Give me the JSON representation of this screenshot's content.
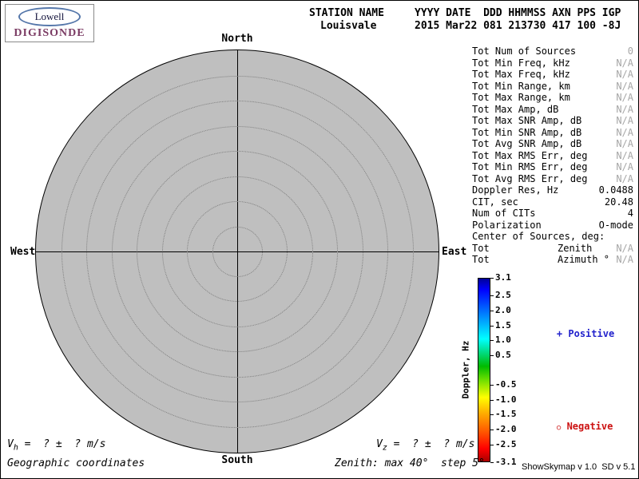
{
  "logo": {
    "top": "Lowell",
    "bottom": "DIGISONDE"
  },
  "header": {
    "station_label": "STATION NAME",
    "station_value": "Louisvale",
    "fields_label": "YYYY DATE  DDD HHMMSS AXN PPS IGP",
    "fields_value": "2015 Mar22 081 213730 417 100 -8J"
  },
  "compass": {
    "north": "North",
    "south": "South",
    "east": "East",
    "west": "West"
  },
  "stats": {
    "rows": [
      {
        "label": "Tot Num of Sources",
        "value": "0"
      },
      {
        "label": "Tot Min Freq, kHz",
        "value": "N/A"
      },
      {
        "label": "Tot Max Freq, kHz",
        "value": "N/A"
      },
      {
        "label": "Tot Min Range, km",
        "value": "N/A"
      },
      {
        "label": "Tot Max Range, km",
        "value": "N/A"
      },
      {
        "label": "Tot Max Amp, dB",
        "value": "N/A"
      },
      {
        "label": "Tot Max SNR Amp, dB",
        "value": "N/A"
      },
      {
        "label": "Tot Min SNR Amp, dB",
        "value": "N/A"
      },
      {
        "label": "Tot Avg SNR Amp, dB",
        "value": "N/A"
      },
      {
        "label": "Tot Max RMS Err, deg",
        "value": "N/A"
      },
      {
        "label": "Tot Min RMS Err, deg",
        "value": "N/A"
      },
      {
        "label": "Tot Avg RMS Err, deg",
        "value": "N/A"
      },
      {
        "label": "Doppler Res, Hz",
        "value": "0.0488"
      },
      {
        "label": "CIT, sec",
        "value": "20.48"
      },
      {
        "label": "Num of CITs",
        "value": "4"
      },
      {
        "label": "Polarization",
        "value": "O-mode"
      },
      {
        "label": "Center of Sources, deg:",
        "value": ""
      },
      {
        "label": "Tot",
        "mid": "Zenith",
        "value": "N/A"
      },
      {
        "label": "Tot",
        "mid": "Azimuth °",
        "value": "N/A"
      }
    ]
  },
  "colorbar": {
    "label": "Doppler, Hz",
    "max": 3.1,
    "min": -3.1,
    "ticks": [
      "3.1",
      "2.5",
      "2.0",
      "1.5",
      "1.0",
      "0.5",
      "-0.5",
      "-1.0",
      "-1.5",
      "-2.0",
      "-2.5",
      "-3.1"
    ],
    "tick_values": [
      3.1,
      2.5,
      2.0,
      1.5,
      1.0,
      0.5,
      -0.5,
      -1.0,
      -1.5,
      -2.0,
      -2.5,
      -3.1
    ]
  },
  "legend": {
    "positive_marker": "+",
    "positive_label": "Positive",
    "negative_marker": "○",
    "negative_label": "Negative"
  },
  "footer": {
    "vh_sym": "V",
    "vh_sub": "h",
    "vz_sym": "V",
    "vz_sub": "z",
    "v_rest": " =  ? ±  ? m/s",
    "coords": "Geographic coordinates",
    "zenith_note": "Zenith: max 40°  step 5°",
    "credit": "ShowSkymap v 1.0  SD v 5.1"
  },
  "colors": {
    "positive_blue": "#2222cc",
    "negative_red": "#cc1111",
    "plot_fill": "#bfbfbf",
    "na_gray": "#a6a6a6",
    "logo_purple": "#7b3c64"
  },
  "chart_data": {
    "type": "scatter",
    "title": "Digisonde skymap — Louisvale, 2015 Mar22 081 213730",
    "polar": true,
    "compass_labels": [
      "North",
      "East",
      "South",
      "West"
    ],
    "zenith_max_deg": 40,
    "zenith_step_deg": 5,
    "num_sources": 0,
    "points": [],
    "colorbar": {
      "label": "Doppler, Hz",
      "min": -3.1,
      "max": 3.1
    },
    "legend": [
      "+ Positive",
      "○ Negative"
    ],
    "annotations": [
      "Vh = ? ± ? m/s",
      "Vz = ? ± ? m/s",
      "Geographic coordinates",
      "Zenith: max 40° step 5°"
    ]
  }
}
